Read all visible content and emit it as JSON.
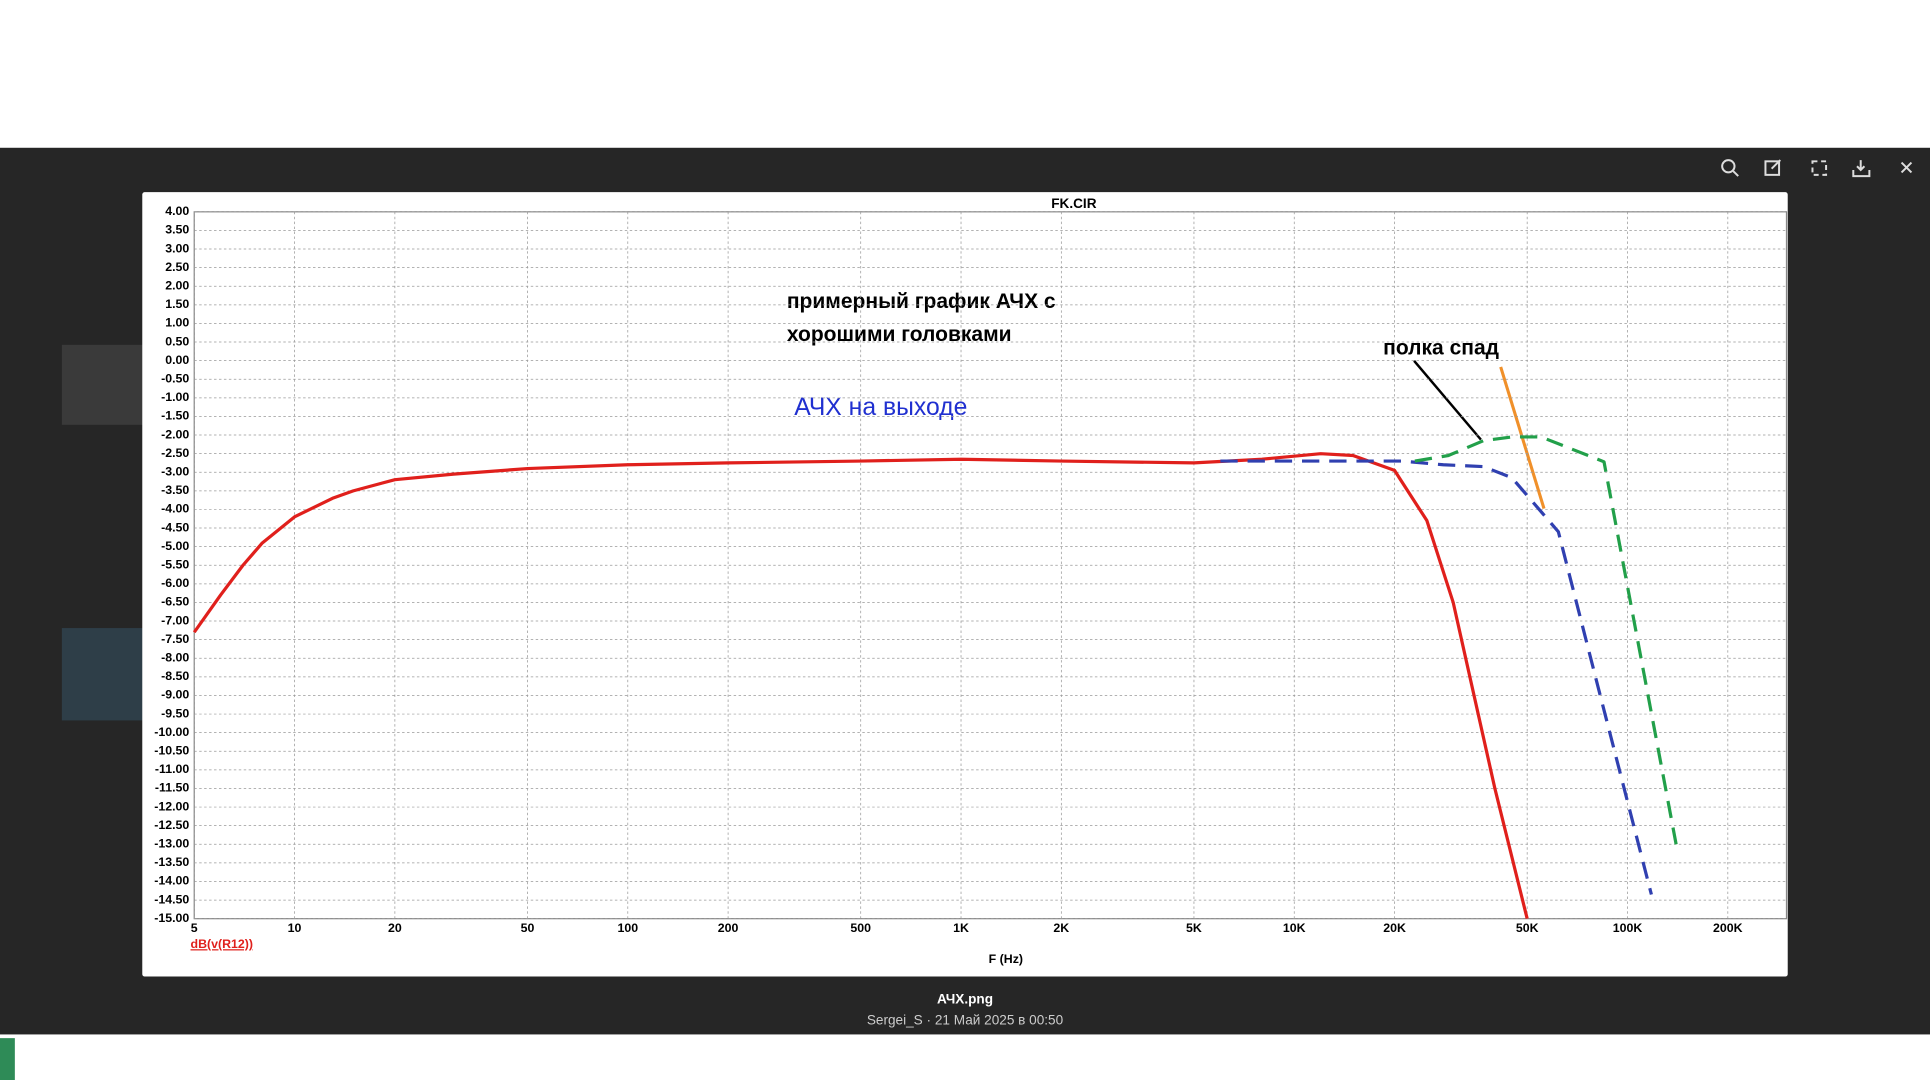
{
  "viewer": {
    "file_name": "АЧХ.png",
    "caption": "Sergei_S · 21 Май 2025 в 00:50"
  },
  "chart_data": {
    "type": "line",
    "title": "FK.CIR",
    "x_label": "F (Hz)",
    "log_x": true,
    "grid": true,
    "xlim": [
      5,
      300000
    ],
    "ylim": [
      -15,
      4
    ],
    "xticks": [
      5,
      10,
      20,
      50,
      100,
      200,
      500,
      {
        "value": 1000,
        "label": "1K"
      },
      {
        "value": 2000,
        "label": "2K"
      },
      {
        "value": 5000,
        "label": "5K"
      },
      {
        "value": 10000,
        "label": "10K"
      },
      {
        "value": 20000,
        "label": "20K"
      },
      {
        "value": 50000,
        "label": "50K"
      },
      {
        "value": 100000,
        "label": "100K"
      },
      {
        "value": 200000,
        "label": "200K"
      }
    ],
    "yticks": [
      {
        "value": 4,
        "label": "4.00"
      },
      {
        "value": 3.5,
        "label": "3.50"
      },
      {
        "value": 3,
        "label": "3.00"
      },
      {
        "value": 2.5,
        "label": "2.50"
      },
      {
        "value": 2,
        "label": "2.00"
      },
      {
        "value": 1.5,
        "label": "1.50"
      },
      {
        "value": 1,
        "label": "1.00"
      },
      {
        "value": 0.5,
        "label": "0.50"
      },
      {
        "value": 0,
        "label": "0.00"
      },
      {
        "value": -0.5,
        "label": "-0.50"
      },
      {
        "value": -1,
        "label": "-1.00"
      },
      {
        "value": -1.5,
        "label": "-1.50"
      },
      {
        "value": -2,
        "label": "-2.00"
      },
      {
        "value": -2.5,
        "label": "-2.50"
      },
      {
        "value": -3,
        "label": "-3.00"
      },
      {
        "value": -3.5,
        "label": "-3.50"
      },
      {
        "value": -4,
        "label": "-4.00"
      },
      {
        "value": -4.5,
        "label": "-4.50"
      },
      {
        "value": -5,
        "label": "-5.00"
      },
      {
        "value": -5.5,
        "label": "-5.50"
      },
      {
        "value": -6,
        "label": "-6.00"
      },
      {
        "value": -6.5,
        "label": "-6.50"
      },
      {
        "value": -7,
        "label": "-7.00"
      },
      {
        "value": -7.5,
        "label": "-7.50"
      },
      {
        "value": -8,
        "label": "-8.00"
      },
      {
        "value": -8.5,
        "label": "-8.50"
      },
      {
        "value": -9,
        "label": "-9.00"
      },
      {
        "value": -9.5,
        "label": "-9.50"
      },
      {
        "value": -10,
        "label": "-10.00"
      },
      {
        "value": -10.5,
        "label": "-10.50"
      },
      {
        "value": -11,
        "label": "-11.00"
      },
      {
        "value": -11.5,
        "label": "-11.50"
      },
      {
        "value": -12,
        "label": "-12.00"
      },
      {
        "value": -12.5,
        "label": "-12.50"
      },
      {
        "value": -13,
        "label": "-13.00"
      },
      {
        "value": -13.5,
        "label": "-13.50"
      },
      {
        "value": -14,
        "label": "-14.00"
      },
      {
        "value": -14.5,
        "label": "-14.50"
      },
      {
        "value": -15,
        "label": "-15.00"
      }
    ],
    "series": [
      {
        "name": "dB(v(R12))",
        "color": "#e0201c",
        "dashed": false,
        "x": [
          5,
          6,
          7,
          8,
          10,
          13,
          15,
          20,
          30,
          50,
          100,
          200,
          500,
          1000,
          2000,
          5000,
          8000,
          12000,
          15000,
          20000,
          25000,
          30000,
          40000,
          50000
        ],
        "values": [
          -7.3,
          -6.3,
          -5.5,
          -4.9,
          -4.2,
          -3.7,
          -3.5,
          -3.2,
          -3.05,
          -2.9,
          -2.8,
          -2.75,
          -2.7,
          -2.65,
          -2.7,
          -2.75,
          -2.65,
          -2.5,
          -2.55,
          -2.95,
          -4.3,
          -6.5,
          -11.5,
          -15
        ]
      },
      {
        "color": "#3040b0",
        "dashed": true,
        "x": [
          6000,
          21000,
          28000,
          37000,
          45000,
          62000,
          82000,
          118000
        ],
        "values": [
          -2.7,
          -2.7,
          -2.8,
          -2.85,
          -3.15,
          -4.6,
          -8.85,
          -14.35
        ]
      },
      {
        "color": "#22a04a",
        "dashed": true,
        "x": [
          23000,
          29000,
          37000,
          45000,
          55000,
          85000,
          140000
        ],
        "values": [
          -2.7,
          -2.55,
          -2.15,
          -2.05,
          -2.05,
          -2.72,
          -13
        ]
      }
    ],
    "annotations": [
      "примерный график АЧХ с",
      "хорошими головками",
      "полка спад",
      "АЧХ на выходе"
    ]
  }
}
